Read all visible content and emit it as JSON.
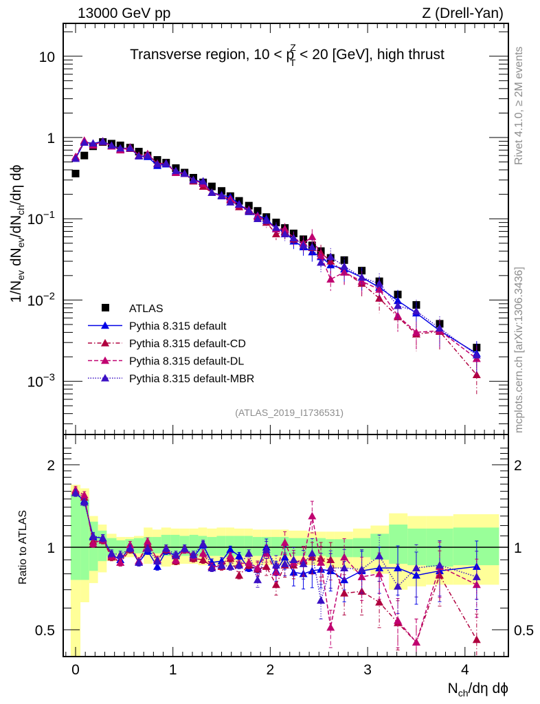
{
  "header": {
    "left": "13000 GeV pp",
    "right": "Z (Drell-Yan)"
  },
  "side_labels": {
    "rivet": "Rivet 4.1.0, ≥ 2M events",
    "mcplots": "mcplots.cern.ch [arXiv:1306.3436]"
  },
  "chart_data": [
    {
      "type": "scatter",
      "title": "Transverse region, 10 < p_T^Z < 20 [GeV], high thrust",
      "title_parts": {
        "pre": "Transverse region, 10 < p",
        "sup": "Z",
        "sub": "T",
        "post": " < 20 [GeV], high thrust"
      },
      "xlabel": "N_ch/dη dϕ",
      "ylabel": "1/N_ev dN_ev/dN_ch/dη dϕ",
      "yscale": "log",
      "xlim": [
        -0.1,
        4.4
      ],
      "ylim": [
        0.00025,
        25
      ],
      "ytick_labels": [
        "10",
        "1",
        "10^-1",
        "10^-2",
        "10^-3"
      ],
      "ytick_values": [
        10,
        1,
        0.1,
        0.01,
        0.001
      ],
      "legend_position": "lower-left",
      "analysis_tag": "(ATLAS_2019_I1736531)",
      "x": [
        0.0,
        0.09,
        0.18,
        0.28,
        0.37,
        0.46,
        0.56,
        0.65,
        0.74,
        0.84,
        0.93,
        1.03,
        1.12,
        1.21,
        1.31,
        1.4,
        1.5,
        1.59,
        1.68,
        1.78,
        1.87,
        1.96,
        2.06,
        2.15,
        2.24,
        2.34,
        2.43,
        2.52,
        2.62,
        2.76,
        2.94,
        3.12,
        3.31,
        3.5,
        3.74,
        4.12
      ],
      "series": [
        {
          "name": "ATLAS",
          "marker": "square",
          "color": "#000000",
          "values": [
            0.36,
            0.6,
            0.78,
            0.88,
            0.84,
            0.8,
            0.75,
            0.67,
            0.6,
            0.53,
            0.49,
            0.42,
            0.37,
            0.32,
            0.28,
            0.25,
            0.22,
            0.19,
            0.166,
            0.145,
            0.125,
            0.105,
            0.09,
            0.077,
            0.066,
            0.056,
            0.047,
            0.04,
            0.033,
            0.031,
            0.023,
            0.017,
            0.0117,
            0.0087,
            0.0051,
            0.0026
          ]
        },
        {
          "name": "Pythia 8.315 default",
          "marker": "triangle",
          "line": "solid",
          "color": "#0000e6",
          "values": [
            0.55,
            0.88,
            0.84,
            0.9,
            0.79,
            0.72,
            0.74,
            0.59,
            0.58,
            0.45,
            0.47,
            0.38,
            0.36,
            0.3,
            0.28,
            0.21,
            0.195,
            0.185,
            0.152,
            0.122,
            0.11,
            0.1,
            0.075,
            0.07,
            0.053,
            0.045,
            0.039,
            0.034,
            0.027,
            0.024,
            0.019,
            0.0143,
            0.0098,
            0.0069,
            0.0042,
            0.0022
          ]
        },
        {
          "name": "Pythia 8.315 default-CD",
          "marker": "triangle",
          "line": "dashdot",
          "color": "#b0003e",
          "values": [
            0.57,
            0.9,
            0.82,
            0.88,
            0.79,
            0.71,
            0.73,
            0.6,
            0.62,
            0.48,
            0.48,
            0.37,
            0.36,
            0.29,
            0.25,
            0.21,
            0.19,
            0.17,
            0.14,
            0.125,
            0.105,
            0.09,
            0.065,
            0.068,
            0.056,
            0.05,
            0.044,
            0.038,
            0.03,
            0.022,
            0.016,
            0.0105,
            0.0062,
            0.0038,
            0.0041,
            0.0012
          ]
        },
        {
          "name": "Pythia 8.315 default-DL",
          "marker": "triangle",
          "line": "dashed",
          "color": "#c00070",
          "values": [
            0.58,
            0.92,
            0.8,
            0.9,
            0.78,
            0.7,
            0.76,
            0.6,
            0.63,
            0.47,
            0.48,
            0.37,
            0.36,
            0.3,
            0.27,
            0.21,
            0.19,
            0.175,
            0.148,
            0.13,
            0.108,
            0.095,
            0.075,
            0.075,
            0.058,
            0.05,
            0.06,
            0.035,
            0.018,
            0.022,
            0.017,
            0.0135,
            0.0064,
            0.004,
            0.0042,
            0.0019
          ]
        },
        {
          "name": "Pythia 8.315 default-MBR",
          "marker": "triangle",
          "line": "dotted",
          "color": "#3b10c4",
          "values": [
            0.55,
            0.87,
            0.85,
            0.89,
            0.8,
            0.74,
            0.74,
            0.59,
            0.6,
            0.47,
            0.48,
            0.39,
            0.36,
            0.3,
            0.29,
            0.21,
            0.19,
            0.16,
            0.15,
            0.127,
            0.1,
            0.095,
            0.078,
            0.065,
            0.058,
            0.047,
            0.045,
            0.029,
            0.034,
            0.026,
            0.019,
            0.0159,
            0.0085,
            0.0073,
            0.0045,
            0.0021
          ]
        }
      ]
    },
    {
      "type": "scatter",
      "title": "",
      "xlabel": "N_ch/dη dϕ",
      "ylabel": "Ratio to ATLAS",
      "yscale": "log",
      "xlim": [
        -0.1,
        4.4
      ],
      "ylim": [
        0.41,
        2.35
      ],
      "ytick_labels": [
        "2",
        "1",
        "0.5"
      ],
      "ytick_values": [
        2,
        1,
        0.5
      ],
      "xtick_labels": [
        "0",
        "1",
        "2",
        "3",
        "4"
      ],
      "xtick_values": [
        0,
        1,
        2,
        3,
        4
      ],
      "reference_line": 1,
      "bands": {
        "bin_edges": [
          -0.05,
          0.05,
          0.14,
          0.23,
          0.32,
          0.42,
          0.51,
          0.6,
          0.7,
          0.79,
          0.88,
          0.98,
          1.07,
          1.17,
          1.26,
          1.35,
          1.45,
          1.54,
          1.63,
          1.73,
          1.82,
          1.91,
          2.01,
          2.1,
          2.19,
          2.29,
          2.38,
          2.47,
          2.57,
          2.66,
          2.85,
          3.03,
          3.22,
          3.41,
          3.6,
          3.88,
          4.35
        ],
        "stat_upper": [
          1.56,
          1.5,
          1.24,
          1.15,
          1.08,
          1.06,
          1.07,
          1.08,
          1.09,
          1.09,
          1.11,
          1.11,
          1.1,
          1.11,
          1.1,
          1.09,
          1.1,
          1.1,
          1.1,
          1.1,
          1.09,
          1.09,
          1.09,
          1.09,
          1.08,
          1.08,
          1.08,
          1.08,
          1.07,
          1.07,
          1.08,
          1.12,
          1.21,
          1.17,
          1.17,
          1.18,
          1.18
        ],
        "stat_lower": [
          0.76,
          0.76,
          0.82,
          0.89,
          0.93,
          0.95,
          0.95,
          0.95,
          0.94,
          0.95,
          0.93,
          0.93,
          0.93,
          0.92,
          0.93,
          0.93,
          0.93,
          0.92,
          0.93,
          0.93,
          0.93,
          0.93,
          0.93,
          0.93,
          0.93,
          0.93,
          0.93,
          0.93,
          0.92,
          0.92,
          0.92,
          0.9,
          0.87,
          0.86,
          0.85,
          0.86,
          0.86
        ],
        "total_upper": [
          1.69,
          1.64,
          1.3,
          1.21,
          1.12,
          1.09,
          1.09,
          1.1,
          1.18,
          1.16,
          1.18,
          1.17,
          1.17,
          1.17,
          1.18,
          1.17,
          1.18,
          1.18,
          1.17,
          1.17,
          1.16,
          1.16,
          1.16,
          1.16,
          1.15,
          1.15,
          1.14,
          1.14,
          1.14,
          1.14,
          1.17,
          1.2,
          1.33,
          1.3,
          1.3,
          1.32,
          1.32
        ],
        "total_lower": [
          0.3,
          0.63,
          0.74,
          0.81,
          0.89,
          0.91,
          0.92,
          0.92,
          0.87,
          0.89,
          0.85,
          0.86,
          0.87,
          0.87,
          0.86,
          0.87,
          0.86,
          0.85,
          0.85,
          0.86,
          0.86,
          0.86,
          0.86,
          0.86,
          0.86,
          0.86,
          0.86,
          0.86,
          0.84,
          0.84,
          0.82,
          0.8,
          0.7,
          0.72,
          0.73,
          0.73,
          0.73
        ],
        "stat_color": "#99ff99",
        "total_color": "#ffff99"
      },
      "series": [
        {
          "name": "Pythia 8.315 default",
          "color": "#0000e6",
          "line": "solid",
          "values": [
            1.58,
            1.48,
            1.09,
            1.08,
            0.94,
            0.9,
            1.0,
            0.88,
            0.97,
            0.85,
            0.97,
            0.93,
            0.99,
            0.92,
            1.02,
            0.88,
            0.89,
            0.98,
            0.93,
            0.84,
            0.84,
            1.0,
            0.82,
            0.92,
            0.81,
            0.8,
            0.82,
            0.83,
            0.82,
            0.76,
            0.82,
            0.84,
            0.84,
            0.79,
            0.82,
            0.85
          ]
        },
        {
          "name": "Pythia 8.315 default-CD",
          "color": "#b0003e",
          "line": "dashdot",
          "values": [
            1.6,
            1.52,
            1.05,
            1.06,
            0.92,
            0.88,
            0.98,
            0.89,
            1.03,
            0.9,
            0.98,
            0.89,
            0.98,
            0.91,
            0.9,
            0.85,
            0.85,
            0.91,
            0.79,
            0.86,
            0.83,
            0.85,
            0.73,
            0.86,
            0.86,
            0.89,
            0.92,
            0.91,
            0.9,
            0.68,
            0.69,
            0.63,
            0.53,
            0.45,
            0.79,
            0.46
          ]
        },
        {
          "name": "Pythia 8.315 default-DL",
          "color": "#c00070",
          "line": "dashed",
          "values": [
            1.62,
            1.55,
            1.03,
            1.07,
            0.93,
            0.88,
            1.02,
            0.89,
            1.05,
            0.9,
            0.99,
            0.9,
            0.98,
            0.93,
            0.95,
            0.85,
            0.86,
            0.93,
            0.87,
            0.88,
            0.84,
            0.95,
            0.81,
            1.04,
            0.88,
            0.9,
            1.3,
            0.88,
            0.51,
            0.92,
            0.78,
            0.8,
            0.54,
            0.45,
            0.85,
            0.73
          ]
        },
        {
          "name": "Pythia 8.315 default-MBR",
          "color": "#3b10c4",
          "line": "dotted",
          "values": [
            1.58,
            1.46,
            1.1,
            1.08,
            0.95,
            0.94,
            0.99,
            0.88,
            0.99,
            0.89,
            0.99,
            0.94,
            0.99,
            0.94,
            1.03,
            0.84,
            0.86,
            0.85,
            0.86,
            0.95,
            0.76,
            0.98,
            0.86,
            0.87,
            0.9,
            0.87,
            0.95,
            0.64,
            0.84,
            0.84,
            0.83,
            0.93,
            0.72,
            0.84,
            0.86,
            0.78
          ]
        }
      ]
    }
  ]
}
